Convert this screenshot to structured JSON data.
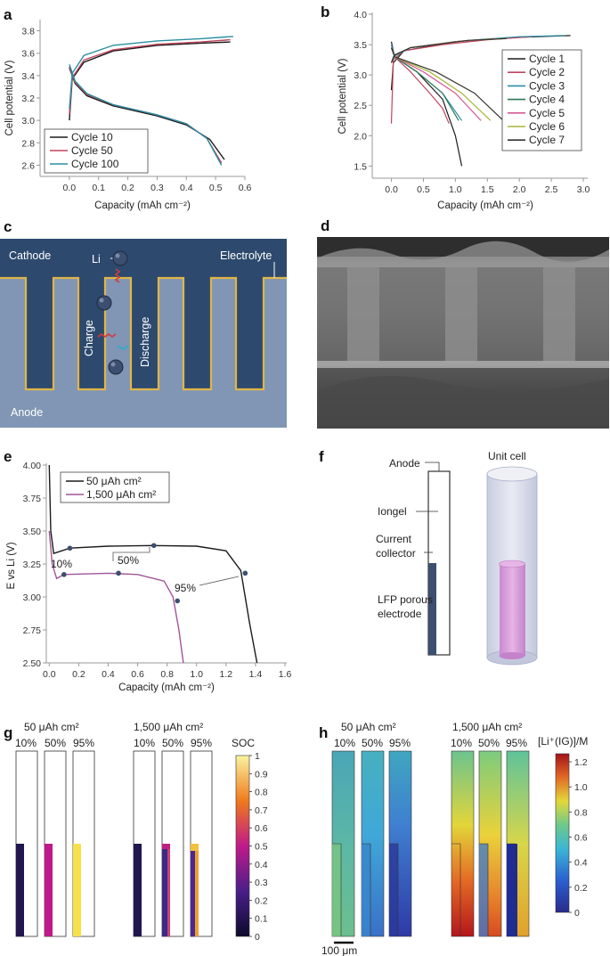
{
  "colors": {
    "c10": "#1b1b1b",
    "c50": "#c0455e",
    "c100": "#2a8fa3",
    "cyc": [
      "#1b1b1b",
      "#c0455e",
      "#2a8fa3",
      "#2e7a53",
      "#d45a98",
      "#a8b534",
      "#333333"
    ],
    "lowcap": "#1b1b1b",
    "highcap": "#a0559a",
    "cathode": "#2d4a6e",
    "anode": "#8096b4",
    "border": "#e0b54a",
    "ion": "#3c4f70",
    "charge_arrow": "#d23a3a",
    "discharge_arrow": "#3aa9c9"
  },
  "panels": {
    "a": "a",
    "b": "b",
    "c": "c",
    "d": "d",
    "e": "e",
    "f": "f",
    "g": "g",
    "h": "h"
  },
  "chart_data": [
    {
      "id": "a",
      "type": "line",
      "xlabel": "Capacity (mAh cm⁻²)",
      "ylabel": "Cell potential (V)",
      "xlim": [
        -0.1,
        0.6
      ],
      "ylim": [
        2.5,
        3.9
      ],
      "xticks": [
        "0.0",
        "0.1",
        "0.2",
        "0.3",
        "0.4",
        "0.5",
        "0.6"
      ],
      "yticks": [
        "2.6",
        "2.8",
        "3.0",
        "3.2",
        "3.4",
        "3.6",
        "3.8"
      ],
      "legend": "bottom-left",
      "series": [
        {
          "name": "Cycle 10",
          "charge": [
            [
              0.0,
              3.0
            ],
            [
              0.01,
              3.37
            ],
            [
              0.05,
              3.52
            ],
            [
              0.15,
              3.62
            ],
            [
              0.3,
              3.67
            ],
            [
              0.45,
              3.69
            ],
            [
              0.55,
              3.7
            ]
          ],
          "discharge": [
            [
              0.0,
              3.47
            ],
            [
              0.02,
              3.33
            ],
            [
              0.06,
              3.22
            ],
            [
              0.15,
              3.13
            ],
            [
              0.3,
              3.04
            ],
            [
              0.4,
              2.96
            ],
            [
              0.48,
              2.83
            ],
            [
              0.53,
              2.65
            ]
          ]
        },
        {
          "name": "Cycle 50",
          "charge": [
            [
              0.0,
              3.05
            ],
            [
              0.01,
              3.38
            ],
            [
              0.05,
              3.54
            ],
            [
              0.15,
              3.63
            ],
            [
              0.3,
              3.68
            ],
            [
              0.45,
              3.7
            ],
            [
              0.55,
              3.72
            ]
          ],
          "discharge": [
            [
              0.0,
              3.48
            ],
            [
              0.02,
              3.34
            ],
            [
              0.06,
              3.23
            ],
            [
              0.15,
              3.14
            ],
            [
              0.3,
              3.05
            ],
            [
              0.4,
              2.97
            ],
            [
              0.47,
              2.84
            ],
            [
              0.52,
              2.62
            ]
          ]
        },
        {
          "name": "Cycle 100",
          "charge": [
            [
              0.0,
              3.1
            ],
            [
              0.01,
              3.42
            ],
            [
              0.05,
              3.58
            ],
            [
              0.15,
              3.67
            ],
            [
              0.3,
              3.71
            ],
            [
              0.45,
              3.73
            ],
            [
              0.56,
              3.75
            ]
          ],
          "discharge": [
            [
              0.0,
              3.5
            ],
            [
              0.02,
              3.35
            ],
            [
              0.06,
              3.24
            ],
            [
              0.15,
              3.14
            ],
            [
              0.3,
              3.05
            ],
            [
              0.4,
              2.97
            ],
            [
              0.47,
              2.84
            ],
            [
              0.52,
              2.6
            ]
          ]
        }
      ]
    },
    {
      "id": "b",
      "type": "line",
      "xlabel": "Capacity (mAh cm⁻²)",
      "ylabel": "Cell potential (V)",
      "xlim": [
        -0.3,
        3.0
      ],
      "ylim": [
        1.3,
        4.0
      ],
      "xticks": [
        "0.0",
        "0.5",
        "1.0",
        "1.5",
        "2.0",
        "2.5",
        "3.0"
      ],
      "yticks": [
        "1.5",
        "2.0",
        "2.5",
        "3.0",
        "3.5",
        "4.0"
      ],
      "legend": "right",
      "series": [
        {
          "name": "Cycle 1",
          "charge": [
            [
              0.0,
              2.75
            ],
            [
              0.03,
              3.2
            ],
            [
              0.2,
              3.4
            ],
            [
              1.0,
              3.55
            ],
            [
              2.0,
              3.62
            ],
            [
              2.8,
              3.65
            ]
          ],
          "discharge": [
            [
              0.0,
              3.55
            ],
            [
              0.05,
              3.3
            ],
            [
              0.4,
              3.05
            ],
            [
              0.8,
              2.6
            ],
            [
              1.0,
              2.0
            ],
            [
              1.1,
              1.5
            ]
          ]
        },
        {
          "name": "Cycle 2",
          "charge": [
            [
              0.0,
              2.2
            ],
            [
              0.03,
              3.25
            ],
            [
              0.2,
              3.4
            ],
            [
              0.8,
              3.5
            ],
            [
              1.5,
              3.58
            ],
            [
              2.2,
              3.63
            ]
          ],
          "discharge": [
            [
              0.0,
              3.5
            ],
            [
              0.05,
              3.3
            ],
            [
              0.3,
              3.05
            ],
            [
              0.6,
              2.7
            ],
            [
              0.8,
              2.45
            ],
            [
              0.9,
              2.2
            ]
          ]
        },
        {
          "name": "Cycle 3",
          "charge": [
            [
              0.0,
              3.2
            ],
            [
              0.03,
              3.3
            ],
            [
              0.3,
              3.45
            ],
            [
              1.2,
              3.57
            ],
            [
              2.0,
              3.63
            ],
            [
              2.7,
              3.65
            ]
          ],
          "discharge": [
            [
              0.0,
              3.5
            ],
            [
              0.05,
              3.3
            ],
            [
              0.4,
              3.05
            ],
            [
              0.8,
              2.7
            ],
            [
              1.1,
              2.25
            ]
          ]
        },
        {
          "name": "Cycle 4",
          "charge": [
            [
              0.0,
              3.2
            ],
            [
              0.05,
              3.33
            ],
            [
              0.3,
              3.45
            ],
            [
              1.0,
              3.55
            ],
            [
              1.6,
              3.6
            ]
          ],
          "discharge": [
            [
              0.0,
              3.45
            ],
            [
              0.05,
              3.3
            ],
            [
              0.4,
              3.05
            ],
            [
              0.8,
              2.7
            ],
            [
              1.05,
              2.25
            ]
          ]
        },
        {
          "name": "Cycle 5",
          "charge": [
            [
              0.0,
              3.2
            ],
            [
              0.05,
              3.33
            ],
            [
              0.3,
              3.45
            ],
            [
              1.1,
              3.56
            ],
            [
              1.7,
              3.6
            ]
          ],
          "discharge": [
            [
              0.0,
              3.45
            ],
            [
              0.05,
              3.3
            ],
            [
              0.5,
              3.05
            ],
            [
              1.0,
              2.7
            ],
            [
              1.4,
              2.25
            ]
          ]
        },
        {
          "name": "Cycle 6",
          "charge": [
            [
              0.0,
              3.2
            ],
            [
              0.05,
              3.33
            ],
            [
              0.3,
              3.45
            ],
            [
              1.2,
              3.57
            ],
            [
              1.8,
              3.6
            ]
          ],
          "discharge": [
            [
              0.0,
              3.45
            ],
            [
              0.05,
              3.3
            ],
            [
              0.6,
              3.05
            ],
            [
              1.1,
              2.7
            ],
            [
              1.55,
              2.25
            ]
          ]
        },
        {
          "name": "Cycle 7",
          "charge": [
            [
              0.0,
              3.2
            ],
            [
              0.05,
              3.33
            ],
            [
              0.3,
              3.45
            ],
            [
              1.2,
              3.57
            ],
            [
              1.8,
              3.6
            ]
          ],
          "discharge": [
            [
              0.0,
              3.45
            ],
            [
              0.05,
              3.3
            ],
            [
              0.7,
              3.05
            ],
            [
              1.3,
              2.7
            ],
            [
              1.75,
              2.25
            ]
          ]
        }
      ]
    },
    {
      "id": "e",
      "type": "line",
      "xlabel": "Capacity (mAh cm⁻²)",
      "ylabel": "E vs Li (V)",
      "xlim": [
        -0.02,
        1.6
      ],
      "ylim": [
        2.5,
        4.0
      ],
      "xticks": [
        "0.0",
        "0.2",
        "0.4",
        "0.6",
        "0.8",
        "1.0",
        "1.2",
        "1.4",
        "1.6"
      ],
      "yticks": [
        "2.50",
        "2.75",
        "3.00",
        "3.25",
        "3.50",
        "3.75",
        "4.00"
      ],
      "legend": "top-left",
      "series": [
        {
          "name": "50 μAh cm²",
          "points": [
            [
              0.0,
              4.0
            ],
            [
              0.01,
              3.5
            ],
            [
              0.03,
              3.33
            ],
            [
              0.14,
              3.37
            ],
            [
              0.4,
              3.385
            ],
            [
              0.7,
              3.39
            ],
            [
              1.0,
              3.385
            ],
            [
              1.2,
              3.35
            ],
            [
              1.3,
              3.2
            ],
            [
              1.36,
              2.8
            ],
            [
              1.41,
              2.5
            ]
          ],
          "markers": [
            [
              0.14,
              3.37
            ],
            [
              0.71,
              3.39
            ],
            [
              1.33,
              3.18
            ]
          ]
        },
        {
          "name": "1,500 μAh cm²",
          "points": [
            [
              0.0,
              3.5
            ],
            [
              0.02,
              3.25
            ],
            [
              0.05,
              3.14
            ],
            [
              0.1,
              3.17
            ],
            [
              0.4,
              3.18
            ],
            [
              0.6,
              3.17
            ],
            [
              0.78,
              3.12
            ],
            [
              0.84,
              3.0
            ],
            [
              0.88,
              2.75
            ],
            [
              0.91,
              2.5
            ]
          ],
          "markers": [
            [
              0.1,
              3.17
            ],
            [
              0.47,
              3.18
            ],
            [
              0.87,
              2.97
            ]
          ]
        }
      ],
      "annotations": [
        "10%",
        "50%",
        "95%"
      ]
    }
  ],
  "c": {
    "cathode": "Cathode",
    "electrolyte": "Electrolyte",
    "li": "Li",
    "charge": "Charge",
    "discharge": "Discharge",
    "anode": "Anode"
  },
  "f": {
    "anode": "Anode",
    "iongel": "Iongel",
    "current": "Current",
    "collector": "collector",
    "lfp": "LFP porous",
    "electrode": "electrode",
    "unit_cell": "Unit cell"
  },
  "g": {
    "title_low": "50 μAh cm²",
    "title_high": "1,500 μAh cm²",
    "cols": [
      "10%",
      "50%",
      "95%"
    ],
    "cbar_label": "SOC",
    "cbar_ticks": [
      "0",
      "0.1",
      "0.2",
      "0.3",
      "0.4",
      "0.5",
      "0.6",
      "0.7",
      "0.8",
      "0.9",
      "1"
    ]
  },
  "h": {
    "title_low": "50 μAh cm²",
    "title_high": "1,500 μAh cm²",
    "cols": [
      "10%",
      "50%",
      "95%"
    ],
    "cbar_label": "[Li⁺(IG)]/M",
    "cbar_ticks": [
      "0",
      "0.2",
      "0.4",
      "0.6",
      "0.8",
      "1.0",
      "1.2"
    ],
    "scale": "100 μm"
  }
}
